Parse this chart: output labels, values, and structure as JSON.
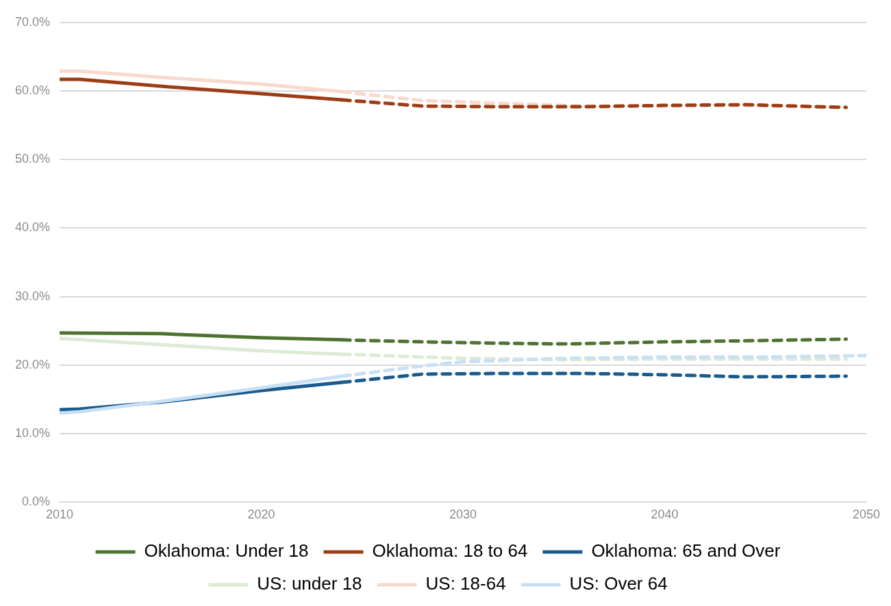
{
  "chart_data": {
    "type": "line",
    "xlim": [
      2010,
      2050
    ],
    "xticks": [
      2010,
      2020,
      2030,
      2040,
      2050
    ],
    "ylim": [
      0,
      70
    ],
    "yticks": [
      {
        "value": 0,
        "label": "0.0%"
      },
      {
        "value": 10,
        "label": "10.0%"
      },
      {
        "value": 20,
        "label": "20.0%"
      },
      {
        "value": 30,
        "label": "30.0%"
      },
      {
        "value": 40,
        "label": "40.0%"
      },
      {
        "value": 50,
        "label": "50.0%"
      },
      {
        "value": 60,
        "label": "60.0%"
      },
      {
        "value": 70,
        "label": "70.0%"
      }
    ],
    "grid": "y",
    "legend": "bottom",
    "marker": "none",
    "series": [
      {
        "name": "Oklahoma: Under 18",
        "color": "#4e7330",
        "line_style": "solid",
        "x": [
          2010,
          2015,
          2020,
          2024
        ],
        "values": [
          24.7,
          24.6,
          24.0,
          23.7
        ]
      },
      {
        "name": "Oklahoma: 18 to 64",
        "color": "#9c3d16",
        "line_style": "solid",
        "x": [
          2010,
          2011,
          2015,
          2020,
          2024
        ],
        "values": [
          61.7,
          61.7,
          60.7,
          59.6,
          58.7
        ]
      },
      {
        "name": "Oklahoma: 65 and Over",
        "color": "#1a5b8e",
        "line_style": "solid",
        "x": [
          2010,
          2011,
          2015,
          2020,
          2024
        ],
        "values": [
          13.5,
          13.6,
          14.6,
          16.3,
          17.5
        ]
      },
      {
        "name": "US: under 18",
        "color": "#dcebd3",
        "line_style": "solid",
        "x": [
          2010,
          2015,
          2020,
          2024
        ],
        "values": [
          23.9,
          23.0,
          22.1,
          21.6
        ]
      },
      {
        "name": "US: 18-64",
        "color": "#f8d9cc",
        "line_style": "solid",
        "x": [
          2010,
          2011,
          2015,
          2020,
          2024
        ],
        "values": [
          62.9,
          62.9,
          62.0,
          61.0,
          59.9
        ]
      },
      {
        "name": "US: Over 64",
        "color": "#c8e0f4",
        "line_style": "solid",
        "x": [
          2010,
          2011,
          2015,
          2020,
          2024
        ],
        "values": [
          13.0,
          13.2,
          14.7,
          16.7,
          18.4
        ]
      },
      {
        "color": "#dcebd3",
        "line_style": "dashed",
        "x": [
          2024,
          2030,
          2035,
          2040,
          2045,
          2049
        ],
        "values": [
          21.6,
          21.0,
          20.8,
          20.9,
          20.9,
          20.9
        ]
      },
      {
        "color": "#f8d9cc",
        "line_style": "dashed",
        "x": [
          2024,
          2028,
          2032,
          2036,
          2040,
          2044,
          2049
        ],
        "values": [
          59.9,
          58.6,
          58.2,
          57.8,
          57.8,
          57.9,
          57.6
        ]
      },
      {
        "color": "#c8e0f4",
        "line_style": "dashed",
        "x": [
          2024,
          2028,
          2030,
          2035,
          2040,
          2045,
          2050
        ],
        "values": [
          18.4,
          19.9,
          20.5,
          21.0,
          21.2,
          21.2,
          21.4
        ]
      },
      {
        "color": "#4e7330",
        "line_style": "dashed",
        "x": [
          2024,
          2028,
          2032,
          2035,
          2040,
          2045,
          2049
        ],
        "values": [
          23.7,
          23.4,
          23.2,
          23.1,
          23.4,
          23.6,
          23.8
        ]
      },
      {
        "color": "#9c3d16",
        "line_style": "dashed",
        "x": [
          2024,
          2028,
          2032,
          2036,
          2040,
          2044,
          2049
        ],
        "values": [
          58.7,
          57.8,
          57.7,
          57.7,
          57.9,
          58.0,
          57.6
        ]
      },
      {
        "color": "#1a5b8e",
        "line_style": "dashed",
        "x": [
          2024,
          2028,
          2032,
          2036,
          2040,
          2044,
          2049
        ],
        "values": [
          17.5,
          18.7,
          18.8,
          18.8,
          18.6,
          18.3,
          18.4
        ]
      }
    ]
  }
}
